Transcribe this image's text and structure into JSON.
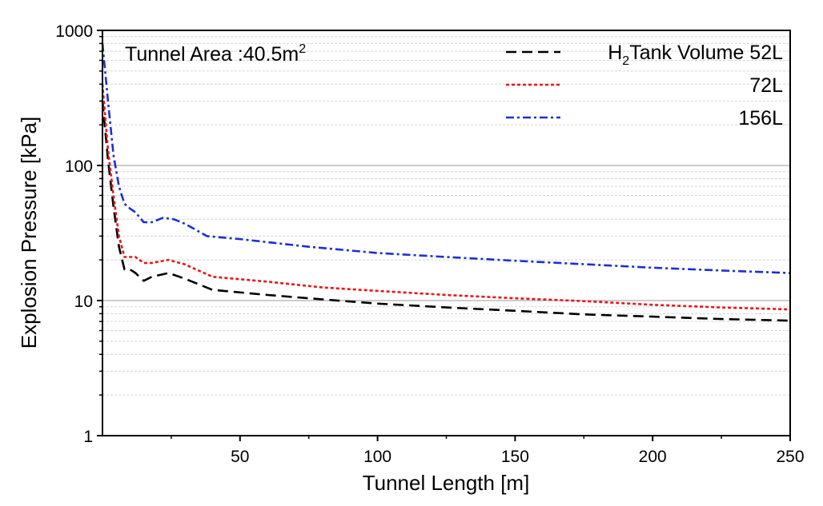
{
  "chart_data": {
    "type": "line",
    "title": "",
    "annotation": {
      "prefix": "Tunnel Area :40.5m",
      "sup": "2"
    },
    "xlabel": "Tunnel Length [m]",
    "ylabel": "Explosion Pressure [kPa]",
    "xlim": [
      0,
      250
    ],
    "ylim": [
      1,
      1000
    ],
    "yscale": "log",
    "xticks": [
      50,
      100,
      150,
      200,
      250
    ],
    "yticks": [
      1,
      10,
      100,
      1000
    ],
    "xtick_labels": [
      "50",
      "100",
      "150",
      "200",
      "250"
    ],
    "ytick_labels": [
      "1",
      "10",
      "100",
      "1000"
    ],
    "legend_position": "top-right",
    "series": [
      {
        "name": "52L",
        "legend_prefix": "H",
        "legend_sub": "2",
        "legend_rest": "Tank Volume 52L",
        "color": "#000000",
        "dash": "dashed",
        "x": [
          0,
          2,
          4,
          6,
          8,
          10,
          12,
          15,
          18,
          24,
          30,
          40,
          60,
          80,
          100,
          125,
          150,
          175,
          200,
          225,
          250
        ],
        "y": [
          300,
          110,
          50,
          25,
          17,
          17,
          16,
          14,
          15,
          16,
          14.5,
          12,
          11,
          10.2,
          9.5,
          8.9,
          8.4,
          7.9,
          7.6,
          7.3,
          7.1
        ]
      },
      {
        "name": "72L",
        "legend_rest": "72L",
        "color": "#e8141b",
        "dash": "dotted",
        "x": [
          0,
          2,
          4,
          6,
          8,
          10,
          12,
          15,
          18,
          24,
          30,
          40,
          60,
          80,
          100,
          125,
          150,
          175,
          200,
          225,
          250
        ],
        "y": [
          400,
          130,
          60,
          30,
          21,
          21,
          21,
          19,
          19,
          20,
          18.5,
          15,
          13.8,
          12.5,
          11.8,
          11,
          10.4,
          9.9,
          9.3,
          8.9,
          8.6
        ]
      },
      {
        "name": "156L",
        "legend_rest": "156L",
        "color": "#1c2fd4",
        "dash": "dashdot",
        "x": [
          0,
          2,
          4,
          6,
          8,
          10,
          12,
          15,
          18,
          22,
          26,
          30,
          38,
          50,
          75,
          100,
          125,
          150,
          175,
          200,
          225,
          250
        ],
        "y": [
          800,
          300,
          120,
          70,
          52,
          48,
          45,
          38,
          38,
          41,
          40,
          37,
          30,
          28.5,
          25,
          22.5,
          21,
          19.7,
          18.6,
          17.5,
          16.7,
          16
        ]
      }
    ]
  }
}
